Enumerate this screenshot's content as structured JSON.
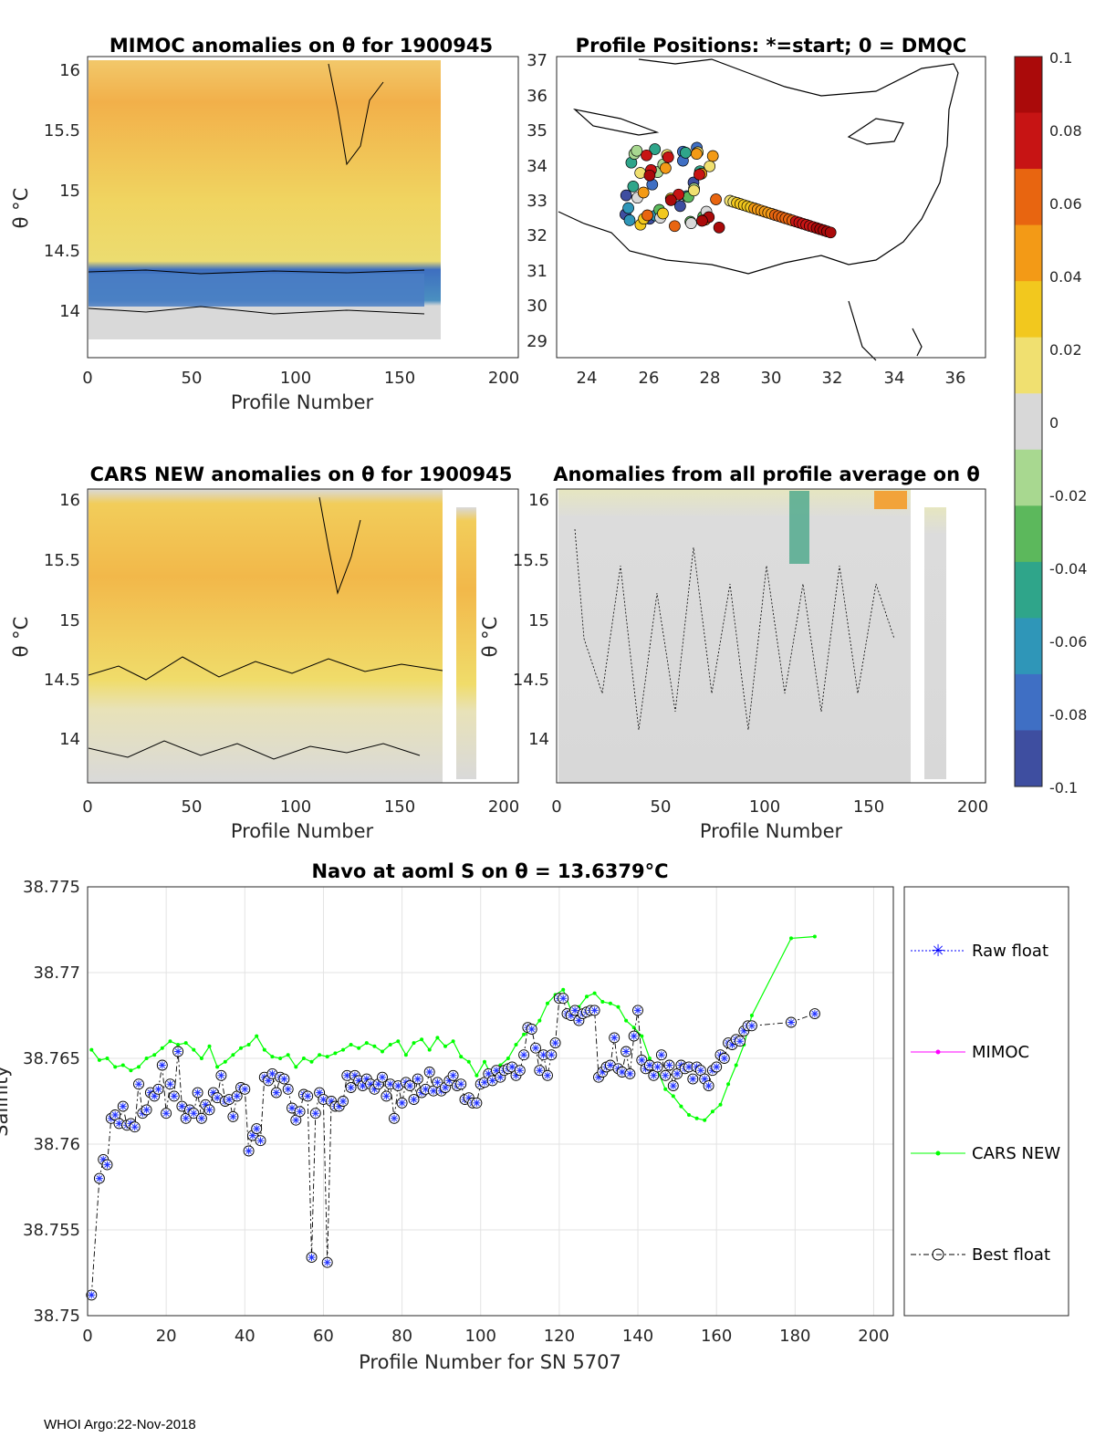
{
  "footer": "WHOI Argo:22-Nov-2018",
  "colorbar": {
    "ticks": [
      "0.1",
      "0.08",
      "0.06",
      "0.04",
      "0.02",
      "0",
      "-0.02",
      "-0.04",
      "-0.06",
      "-0.08",
      "-0.1"
    ],
    "colors": [
      "#3e4ea0",
      "#3f6fc4",
      "#2f96b8",
      "#2fa58a",
      "#5cb85c",
      "#a8d890",
      "#d8d8d8",
      "#f0e070",
      "#f2c81e",
      "#f39a16",
      "#e86510",
      "#c71414",
      "#aa0a0a"
    ]
  },
  "chart_data": [
    {
      "type": "heatmap",
      "title": "MIMOC anomalies on θ  for 1900945",
      "xlabel": "Profile Number",
      "ylabel": "θ °C",
      "xlim": [
        0,
        210
      ],
      "ylim": [
        13.7,
        16.1
      ],
      "xticks": [
        "0",
        "50",
        "100",
        "150",
        "200"
      ],
      "yticks": [
        "16",
        "15.5",
        "15",
        "14.5",
        "14"
      ]
    },
    {
      "type": "scatter",
      "title": "Profile Positions: *=start; 0 = DMQC",
      "xlim": [
        23,
        37
      ],
      "ylim": [
        28.5,
        37
      ],
      "xticks": [
        "24",
        "26",
        "28",
        "30",
        "32",
        "34",
        "36"
      ],
      "yticks": [
        "37",
        "36",
        "35",
        "34",
        "33",
        "32",
        "31",
        "30",
        "29"
      ]
    },
    {
      "type": "heatmap",
      "title": "CARS NEW anomalies on θ for 1900945",
      "xlabel": "Profile Number",
      "ylabel": "θ °C",
      "xlim": [
        0,
        210
      ],
      "ylim": [
        13.7,
        16.1
      ],
      "xticks": [
        "0",
        "50",
        "100",
        "150",
        "200"
      ],
      "yticks": [
        "16",
        "15.5",
        "15",
        "14.5",
        "14"
      ]
    },
    {
      "type": "heatmap",
      "title": "Anomalies from all profile average on θ",
      "xlabel": "Profile Number",
      "ylabel": "θ °C",
      "xlim": [
        0,
        210
      ],
      "ylim": [
        13.7,
        16.1
      ],
      "xticks": [
        "0",
        "50",
        "100",
        "150",
        "200"
      ],
      "yticks": [
        "16",
        "15.5",
        "15",
        "14.5",
        "14"
      ]
    },
    {
      "type": "line",
      "title": "Navo at aoml S on θ = 13.6379°C",
      "xlabel": "Profile Number for SN 5707",
      "ylabel": "Salinity",
      "xlim": [
        0,
        205
      ],
      "ylim": [
        38.75,
        38.775
      ],
      "xticks": [
        "0",
        "20",
        "40",
        "60",
        "80",
        "100",
        "120",
        "140",
        "160",
        "180",
        "200"
      ],
      "yticks": [
        "38.775",
        "38.77",
        "38.765",
        "38.76",
        "38.755",
        "38.75"
      ],
      "legend": [
        "Raw float",
        "MIMOC",
        "CARS NEW",
        "Best float"
      ],
      "series": [
        {
          "name": "CARS NEW",
          "x": [
            1,
            3,
            5,
            7,
            9,
            11,
            13,
            15,
            17,
            19,
            21,
            23,
            25,
            27,
            29,
            31,
            33,
            35,
            37,
            39,
            41,
            43,
            45,
            47,
            49,
            51,
            53,
            55,
            57,
            59,
            61,
            63,
            65,
            67,
            69,
            71,
            73,
            75,
            77,
            79,
            81,
            83,
            85,
            87,
            89,
            91,
            93,
            95,
            97,
            99,
            101,
            103,
            105,
            107,
            109,
            111,
            113,
            115,
            117,
            119,
            121,
            123,
            125,
            127,
            129,
            131,
            133,
            135,
            137,
            139,
            141,
            143,
            145,
            147,
            149,
            151,
            153,
            155,
            157,
            159,
            161,
            163,
            165,
            167,
            169,
            179,
            185
          ],
          "values": [
            38.7655,
            38.7649,
            38.765,
            38.7645,
            38.7646,
            38.7643,
            38.7645,
            38.765,
            38.7652,
            38.7656,
            38.766,
            38.7658,
            38.7659,
            38.7655,
            38.765,
            38.7657,
            38.7645,
            38.7648,
            38.7652,
            38.7656,
            38.7658,
            38.7663,
            38.7655,
            38.7651,
            38.765,
            38.7652,
            38.7645,
            38.765,
            38.7648,
            38.7652,
            38.7651,
            38.7653,
            38.7655,
            38.7658,
            38.7656,
            38.7659,
            38.7657,
            38.7654,
            38.7658,
            38.766,
            38.7652,
            38.7659,
            38.7661,
            38.7655,
            38.7662,
            38.7657,
            38.766,
            38.7651,
            38.7648,
            38.764,
            38.7648,
            38.7639,
            38.7646,
            38.765,
            38.7658,
            38.7664,
            38.7666,
            38.7672,
            38.7682,
            38.7687,
            38.769,
            38.7678,
            38.768,
            38.7686,
            38.7688,
            38.7683,
            38.7682,
            38.768,
            38.7672,
            38.7668,
            38.7663,
            38.765,
            38.7643,
            38.7632,
            38.7628,
            38.7622,
            38.7617,
            38.7615,
            38.7614,
            38.7619,
            38.7623,
            38.7635,
            38.7646,
            38.7658,
            38.7675,
            38.772,
            38.7721
          ]
        },
        {
          "name": "Best float",
          "x": [
            1,
            3,
            4,
            5,
            6,
            7,
            8,
            9,
            10,
            11,
            12,
            13,
            14,
            15,
            16,
            17,
            18,
            19,
            20,
            21,
            22,
            23,
            24,
            25,
            26,
            27,
            28,
            29,
            30,
            31,
            32,
            33,
            34,
            35,
            36,
            37,
            38,
            39,
            40,
            41,
            42,
            43,
            44,
            45,
            46,
            47,
            48,
            49,
            50,
            51,
            52,
            53,
            54,
            55,
            56,
            57,
            58,
            59,
            60,
            61,
            62,
            63,
            64,
            65,
            66,
            67,
            68,
            69,
            70,
            71,
            72,
            73,
            74,
            75,
            76,
            77,
            78,
            79,
            80,
            81,
            82,
            83,
            84,
            85,
            86,
            87,
            88,
            89,
            90,
            91,
            92,
            93,
            94,
            95,
            96,
            97,
            98,
            99,
            100,
            101,
            102,
            103,
            104,
            105,
            106,
            107,
            108,
            109,
            110,
            111,
            112,
            113,
            114,
            115,
            116,
            117,
            118,
            119,
            120,
            121,
            122,
            123,
            124,
            125,
            126,
            127,
            128,
            129,
            130,
            131,
            132,
            133,
            134,
            135,
            136,
            137,
            138,
            139,
            140,
            141,
            142,
            143,
            144,
            145,
            146,
            147,
            148,
            149,
            150,
            151,
            152,
            153,
            154,
            155,
            156,
            157,
            158,
            159,
            160,
            161,
            162,
            163,
            164,
            165,
            166,
            167,
            168,
            169,
            179,
            185
          ],
          "values": [
            38.7512,
            38.758,
            38.7591,
            38.7588,
            38.7615,
            38.7617,
            38.7612,
            38.7622,
            38.7611,
            38.7612,
            38.761,
            38.7635,
            38.7618,
            38.762,
            38.763,
            38.7628,
            38.7632,
            38.7646,
            38.7618,
            38.7635,
            38.7628,
            38.7654,
            38.7622,
            38.7615,
            38.762,
            38.7618,
            38.763,
            38.7615,
            38.7623,
            38.762,
            38.763,
            38.7627,
            38.764,
            38.7625,
            38.7626,
            38.7616,
            38.7628,
            38.7633,
            38.7632,
            38.7596,
            38.7605,
            38.7609,
            38.7602,
            38.7639,
            38.7637,
            38.7641,
            38.763,
            38.7639,
            38.7638,
            38.7632,
            38.7621,
            38.7614,
            38.7619,
            38.7629,
            38.7628,
            38.7534,
            38.7618,
            38.763,
            38.7626,
            38.7531,
            38.7625,
            38.7622,
            38.7622,
            38.7625,
            38.764,
            38.7633,
            38.764,
            38.7637,
            38.7634,
            38.7638,
            38.7635,
            38.7632,
            38.7635,
            38.7639,
            38.7628,
            38.7635,
            38.7615,
            38.7634,
            38.7624,
            38.7636,
            38.7634,
            38.7626,
            38.7638,
            38.763,
            38.7632,
            38.7642,
            38.7631,
            38.7636,
            38.7631,
            38.7633,
            38.7637,
            38.764,
            38.7634,
            38.7635,
            38.7626,
            38.7627,
            38.7624,
            38.7624,
            38.7635,
            38.7636,
            38.7641,
            38.7637,
            38.7643,
            38.7639,
            38.7643,
            38.7644,
            38.7645,
            38.764,
            38.7643,
            38.7652,
            38.7668,
            38.7667,
            38.7656,
            38.7643,
            38.7652,
            38.764,
            38.7652,
            38.7659,
            38.7685,
            38.7685,
            38.7676,
            38.7675,
            38.7678,
            38.7672,
            38.7676,
            38.7677,
            38.7678,
            38.7678,
            38.7639,
            38.7642,
            38.7645,
            38.7646,
            38.7662,
            38.7644,
            38.7642,
            38.7654,
            38.7641,
            38.7663,
            38.7678,
            38.7649,
            38.7644,
            38.7646,
            38.764,
            38.7645,
            38.7652,
            38.764,
            38.7646,
            38.7634,
            38.7641,
            38.7646,
            38.7644,
            38.7645,
            38.7638,
            38.7645,
            38.7643,
            38.7638,
            38.7634,
            38.7643,
            38.7645,
            38.7652,
            38.765,
            38.7659,
            38.7658,
            38.7661,
            38.766,
            38.7666,
            38.7669,
            38.7669,
            38.7671,
            38.7676
          ]
        },
        {
          "name": "Raw float",
          "x": [],
          "values": []
        },
        {
          "name": "MIMOC",
          "x": [],
          "values": []
        }
      ]
    }
  ]
}
